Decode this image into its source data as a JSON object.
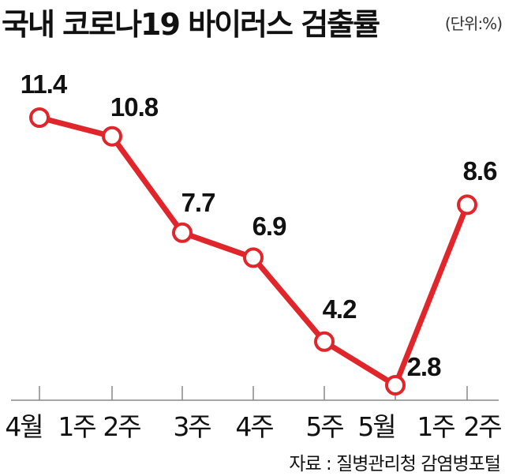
{
  "chart_data": {
    "type": "line",
    "title": "국내 코로나19 바이러스 검출률",
    "unit_note": "(단위:%)",
    "categories": [
      "4월 1주",
      "2주",
      "3주",
      "4주",
      "5주",
      "5월 1주",
      "2주"
    ],
    "x_tick_labels": [
      "4월",
      "1주",
      "2주",
      "3주",
      "4주",
      "5주",
      "5월",
      "1주",
      "2주"
    ],
    "series": [
      {
        "values": [
          11.4,
          10.8,
          7.7,
          6.9,
          4.2,
          2.8,
          8.6
        ]
      }
    ],
    "data_labels": [
      "11.4",
      "10.8",
      "7.7",
      "6.9",
      "4.2",
      "2.8",
      "8.6"
    ],
    "ylim": [
      2.0,
      12.5
    ],
    "grid": false,
    "legend": "none",
    "line_color": "#e0262b",
    "source": "자료 : 질병관리청 감염병포털"
  }
}
